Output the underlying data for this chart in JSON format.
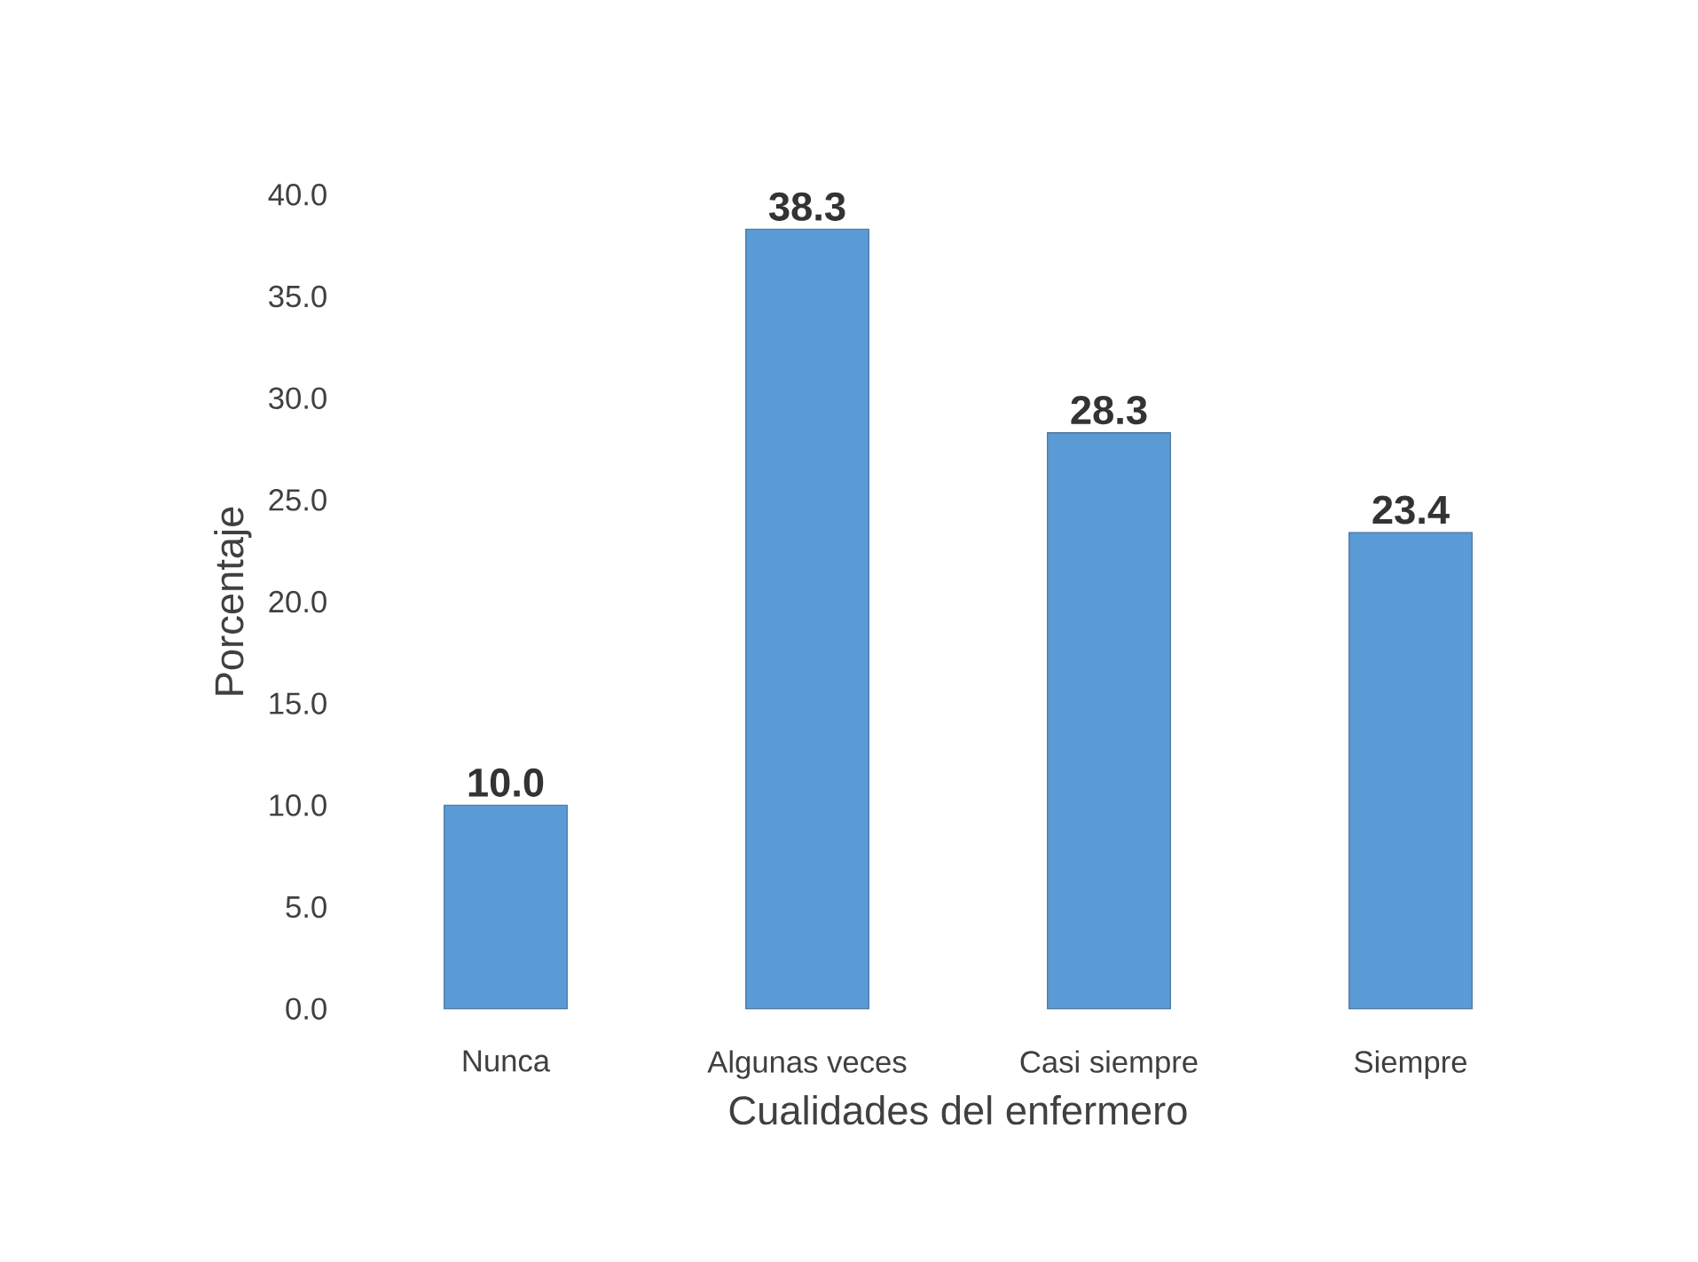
{
  "chart_data": {
    "type": "bar",
    "xlabel": "Cualidades del enfermero",
    "ylabel": "Porcentaje",
    "categories": [
      "Nunca",
      "Algunas veces",
      "Casi siempre",
      "Siempre"
    ],
    "values": [
      10.0,
      38.3,
      28.3,
      23.4
    ],
    "value_labels": [
      "10.0",
      "38.3",
      "28.3",
      "23.4"
    ],
    "color": "#5b9bd5",
    "ylim": [
      0,
      40
    ],
    "yticks": [
      {
        "value": 0,
        "label": "0.0"
      },
      {
        "value": 5,
        "label": "5.0"
      },
      {
        "value": 10,
        "label": "10.0"
      },
      {
        "value": 15,
        "label": "15.0"
      },
      {
        "value": 20,
        "label": "20.0"
      },
      {
        "value": 25,
        "label": "25.0"
      },
      {
        "value": 30,
        "label": "30.0"
      },
      {
        "value": 35,
        "label": "35.0"
      },
      {
        "value": 40,
        "label": "40.0"
      }
    ]
  }
}
